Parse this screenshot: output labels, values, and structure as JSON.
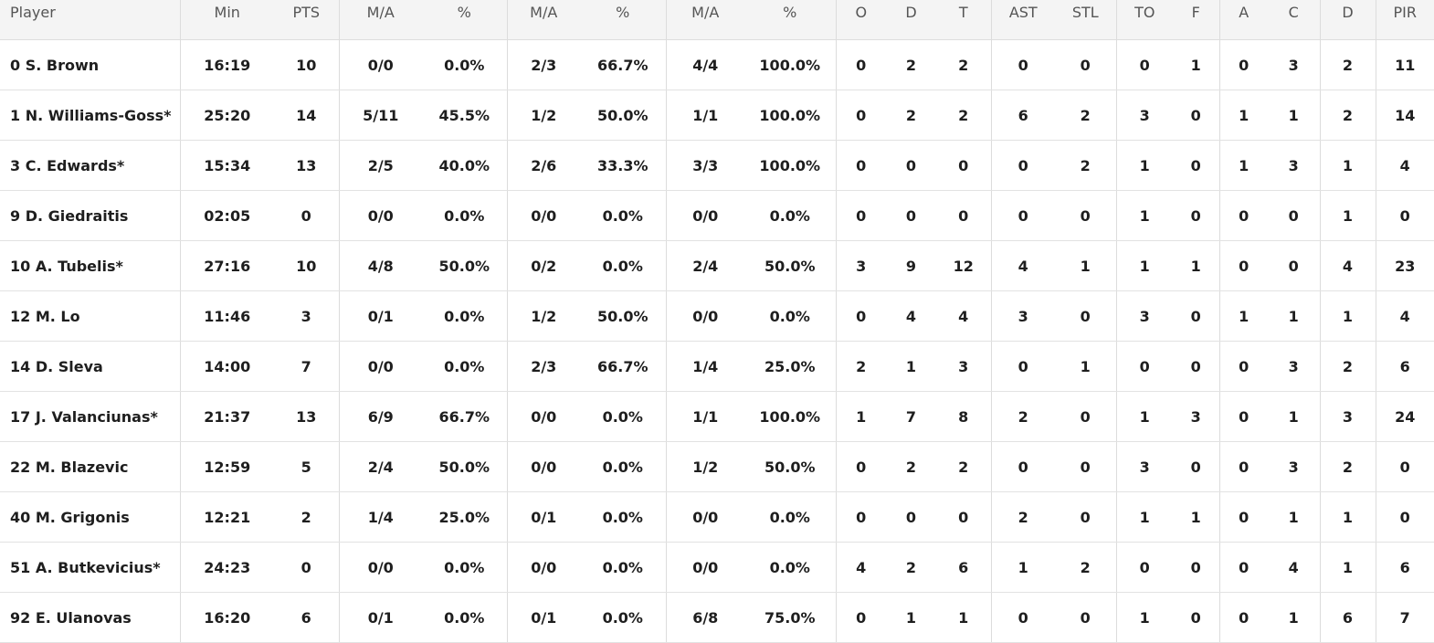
{
  "table": {
    "header": [
      "Player",
      "Min",
      "PTS",
      "M/A",
      "%",
      "M/A",
      "%",
      "M/A",
      "%",
      "O",
      "D",
      "T",
      "AST",
      "STL",
      "TO",
      "F",
      "A",
      "C",
      "D",
      "PIR"
    ],
    "rows": [
      [
        "0 S. Brown",
        "16:19",
        "10",
        "0/0",
        "0.0%",
        "2/3",
        "66.7%",
        "4/4",
        "100.0%",
        "0",
        "2",
        "2",
        "0",
        "0",
        "0",
        "1",
        "0",
        "3",
        "2",
        "11"
      ],
      [
        "1 N. Williams-Goss*",
        "25:20",
        "14",
        "5/11",
        "45.5%",
        "1/2",
        "50.0%",
        "1/1",
        "100.0%",
        "0",
        "2",
        "2",
        "6",
        "2",
        "3",
        "0",
        "1",
        "1",
        "2",
        "14"
      ],
      [
        "3 C. Edwards*",
        "15:34",
        "13",
        "2/5",
        "40.0%",
        "2/6",
        "33.3%",
        "3/3",
        "100.0%",
        "0",
        "0",
        "0",
        "0",
        "2",
        "1",
        "0",
        "1",
        "3",
        "1",
        "4"
      ],
      [
        "9 D. Giedraitis",
        "02:05",
        "0",
        "0/0",
        "0.0%",
        "0/0",
        "0.0%",
        "0/0",
        "0.0%",
        "0",
        "0",
        "0",
        "0",
        "0",
        "1",
        "0",
        "0",
        "0",
        "1",
        "0"
      ],
      [
        "10 A. Tubelis*",
        "27:16",
        "10",
        "4/8",
        "50.0%",
        "0/2",
        "0.0%",
        "2/4",
        "50.0%",
        "3",
        "9",
        "12",
        "4",
        "1",
        "1",
        "1",
        "0",
        "0",
        "4",
        "23"
      ],
      [
        "12 M. Lo",
        "11:46",
        "3",
        "0/1",
        "0.0%",
        "1/2",
        "50.0%",
        "0/0",
        "0.0%",
        "0",
        "4",
        "4",
        "3",
        "0",
        "3",
        "0",
        "1",
        "1",
        "1",
        "4"
      ],
      [
        "14 D. Sleva",
        "14:00",
        "7",
        "0/0",
        "0.0%",
        "2/3",
        "66.7%",
        "1/4",
        "25.0%",
        "2",
        "1",
        "3",
        "0",
        "1",
        "0",
        "0",
        "0",
        "3",
        "2",
        "6"
      ],
      [
        "17 J. Valanciunas*",
        "21:37",
        "13",
        "6/9",
        "66.7%",
        "0/0",
        "0.0%",
        "1/1",
        "100.0%",
        "1",
        "7",
        "8",
        "2",
        "0",
        "1",
        "3",
        "0",
        "1",
        "3",
        "24"
      ],
      [
        "22 M. Blazevic",
        "12:59",
        "5",
        "2/4",
        "50.0%",
        "0/0",
        "0.0%",
        "1/2",
        "50.0%",
        "0",
        "2",
        "2",
        "0",
        "0",
        "3",
        "0",
        "0",
        "3",
        "2",
        "0"
      ],
      [
        "40 M. Grigonis",
        "12:21",
        "2",
        "1/4",
        "25.0%",
        "0/1",
        "0.0%",
        "0/0",
        "0.0%",
        "0",
        "0",
        "0",
        "2",
        "0",
        "1",
        "1",
        "0",
        "1",
        "1",
        "0"
      ],
      [
        "51 A. Butkevicius*",
        "24:23",
        "0",
        "0/0",
        "0.0%",
        "0/0",
        "0.0%",
        "0/0",
        "0.0%",
        "4",
        "2",
        "6",
        "1",
        "2",
        "0",
        "0",
        "0",
        "4",
        "1",
        "6"
      ],
      [
        "92 E. Ulanovas",
        "16:20",
        "6",
        "0/1",
        "0.0%",
        "0/1",
        "0.0%",
        "6/8",
        "75.0%",
        "0",
        "1",
        "1",
        "0",
        "0",
        "1",
        "0",
        "0",
        "1",
        "6",
        "7"
      ]
    ]
  }
}
